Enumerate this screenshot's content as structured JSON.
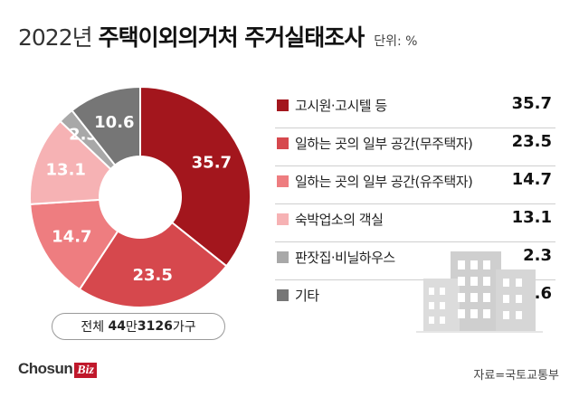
{
  "title": {
    "year": "2022년",
    "main": "주택이외의거처 주거실태조사",
    "unit": "단위: %"
  },
  "total": {
    "prefix": "전체",
    "number_a": "44",
    "unit_a": "만",
    "number_b": "3126",
    "unit_b": "가구"
  },
  "chart_data": {
    "type": "pie",
    "donut": true,
    "categories": [
      "고시원·고시텔 등",
      "일하는 곳의 일부 공간(무주택자)",
      "일하는 곳의 일부 공간(유주택자)",
      "숙박업소의 객실",
      "판잣집·비닐하우스",
      "기타"
    ],
    "values": [
      35.7,
      23.5,
      14.7,
      13.1,
      2.3,
      10.6
    ],
    "value_labels": [
      "35.7",
      "23.5",
      "14.7",
      "13.1",
      "2.3",
      "10.6"
    ],
    "colors": [
      "#a3161d",
      "#d6484d",
      "#ee7d80",
      "#f6b2b4",
      "#a8a8a8",
      "#767676"
    ],
    "legend_placement": "right"
  },
  "footer": {
    "brand_a": "Chosun",
    "brand_b": "Biz",
    "source": "자료=국토교통부"
  },
  "icons": {
    "illustration": "buildings-illustration"
  }
}
